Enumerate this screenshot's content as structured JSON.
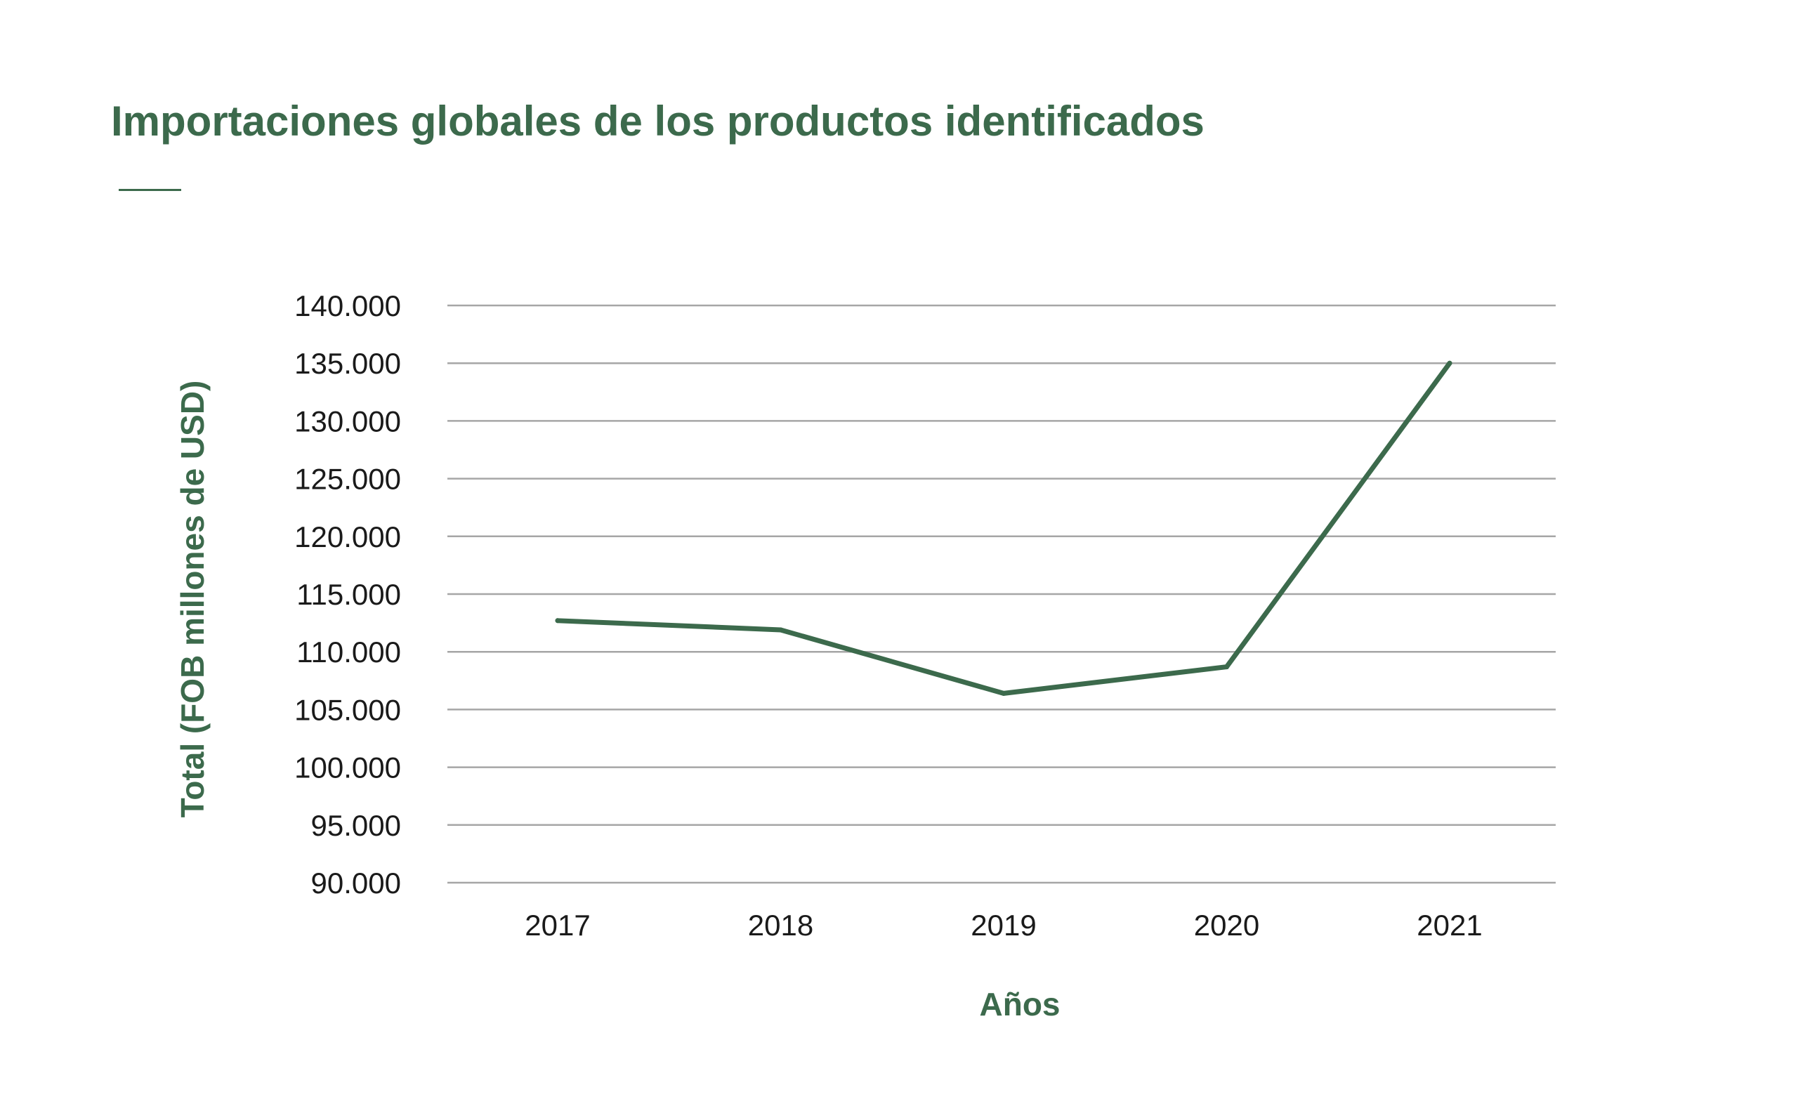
{
  "chart_data": {
    "type": "line",
    "title": "Importaciones globales de los productos identificados",
    "xlabel": "Años",
    "ylabel": "Total (FOB millones de USD)",
    "categories": [
      "2017",
      "2018",
      "2019",
      "2020",
      "2021"
    ],
    "series": [
      {
        "name": "Total",
        "values": [
          112700,
          111900,
          106400,
          108700,
          135000
        ]
      }
    ],
    "ylim": [
      90000,
      140000
    ],
    "yticks": [
      90000,
      95000,
      100000,
      105000,
      110000,
      115000,
      120000,
      125000,
      130000,
      135000,
      140000
    ],
    "ytick_labels": [
      "90.000",
      "95.000",
      "100.000",
      "105.000",
      "110.000",
      "115.000",
      "120.000",
      "125.000",
      "130.000",
      "135.000",
      "140.000"
    ],
    "grid": true,
    "line_color": "#3c6a4c",
    "grid_color": "#a6a6a6"
  }
}
